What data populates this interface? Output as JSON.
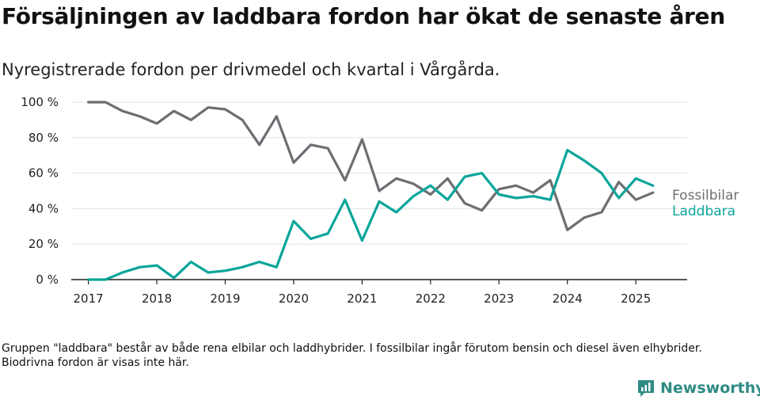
{
  "header": {
    "title": "Försäljningen av laddbara fordon har ökat de senaste åren",
    "subtitle": "Nyregistrerade fordon per drivmedel och kvartal i Vårgårda."
  },
  "footnote": "Gruppen \"laddbara\" består av både rena elbilar och laddhybrider. I fossilbilar ingår förutom bensin och diesel även elhybrider. Biodrivna fordon är visas inte här.",
  "brand": {
    "name": "Newsworthy",
    "icon": "newsworthy-logo-icon"
  },
  "colors": {
    "fossil": "#6e6d73",
    "laddbara": "#0aa59a",
    "grid": "#e3e3e3",
    "axis": "#222222"
  },
  "chart_data": {
    "type": "line",
    "title": "Försäljningen av laddbara fordon har ökat de senaste åren",
    "xlabel": "",
    "ylabel": "",
    "ylim": [
      0,
      100
    ],
    "y_ticks": [
      0,
      20,
      40,
      60,
      80,
      100
    ],
    "y_tick_labels": [
      "0 %",
      "20 %",
      "40 %",
      "60 %",
      "80 %",
      "100 %"
    ],
    "x_ticks": [
      2017,
      2018,
      2019,
      2020,
      2021,
      2022,
      2023,
      2024,
      2025
    ],
    "x_tick_labels": [
      "2017",
      "2018",
      "2019",
      "2020",
      "2021",
      "2022",
      "2023",
      "2024",
      "2025"
    ],
    "x_range": [
      2016.75,
      2025.75
    ],
    "grid": true,
    "legend": "right end of lines",
    "x": [
      2017.0,
      2017.25,
      2017.5,
      2017.75,
      2018.0,
      2018.25,
      2018.5,
      2018.75,
      2019.0,
      2019.25,
      2019.5,
      2019.75,
      2020.0,
      2020.25,
      2020.5,
      2020.75,
      2021.0,
      2021.25,
      2021.5,
      2021.75,
      2022.0,
      2022.25,
      2022.5,
      2022.75,
      2023.0,
      2023.25,
      2023.5,
      2023.75,
      2024.0,
      2024.25,
      2024.5,
      2024.75,
      2025.0,
      2025.25
    ],
    "series": [
      {
        "name": "Fossilbilar",
        "values": [
          100,
          100,
          95,
          92,
          88,
          95,
          90,
          97,
          96,
          90,
          76,
          92,
          66,
          76,
          74,
          56,
          79,
          50,
          57,
          54,
          48,
          57,
          43,
          39,
          51,
          53,
          49,
          56,
          28,
          35,
          38,
          55,
          45,
          49
        ]
      },
      {
        "name": "Laddbara",
        "values": [
          0,
          0,
          4,
          7,
          8,
          1,
          10,
          4,
          5,
          7,
          10,
          7,
          33,
          23,
          26,
          45,
          22,
          44,
          38,
          47,
          53,
          45,
          58,
          60,
          48,
          46,
          47,
          45,
          73,
          67,
          60,
          46,
          57,
          53
        ]
      }
    ]
  }
}
